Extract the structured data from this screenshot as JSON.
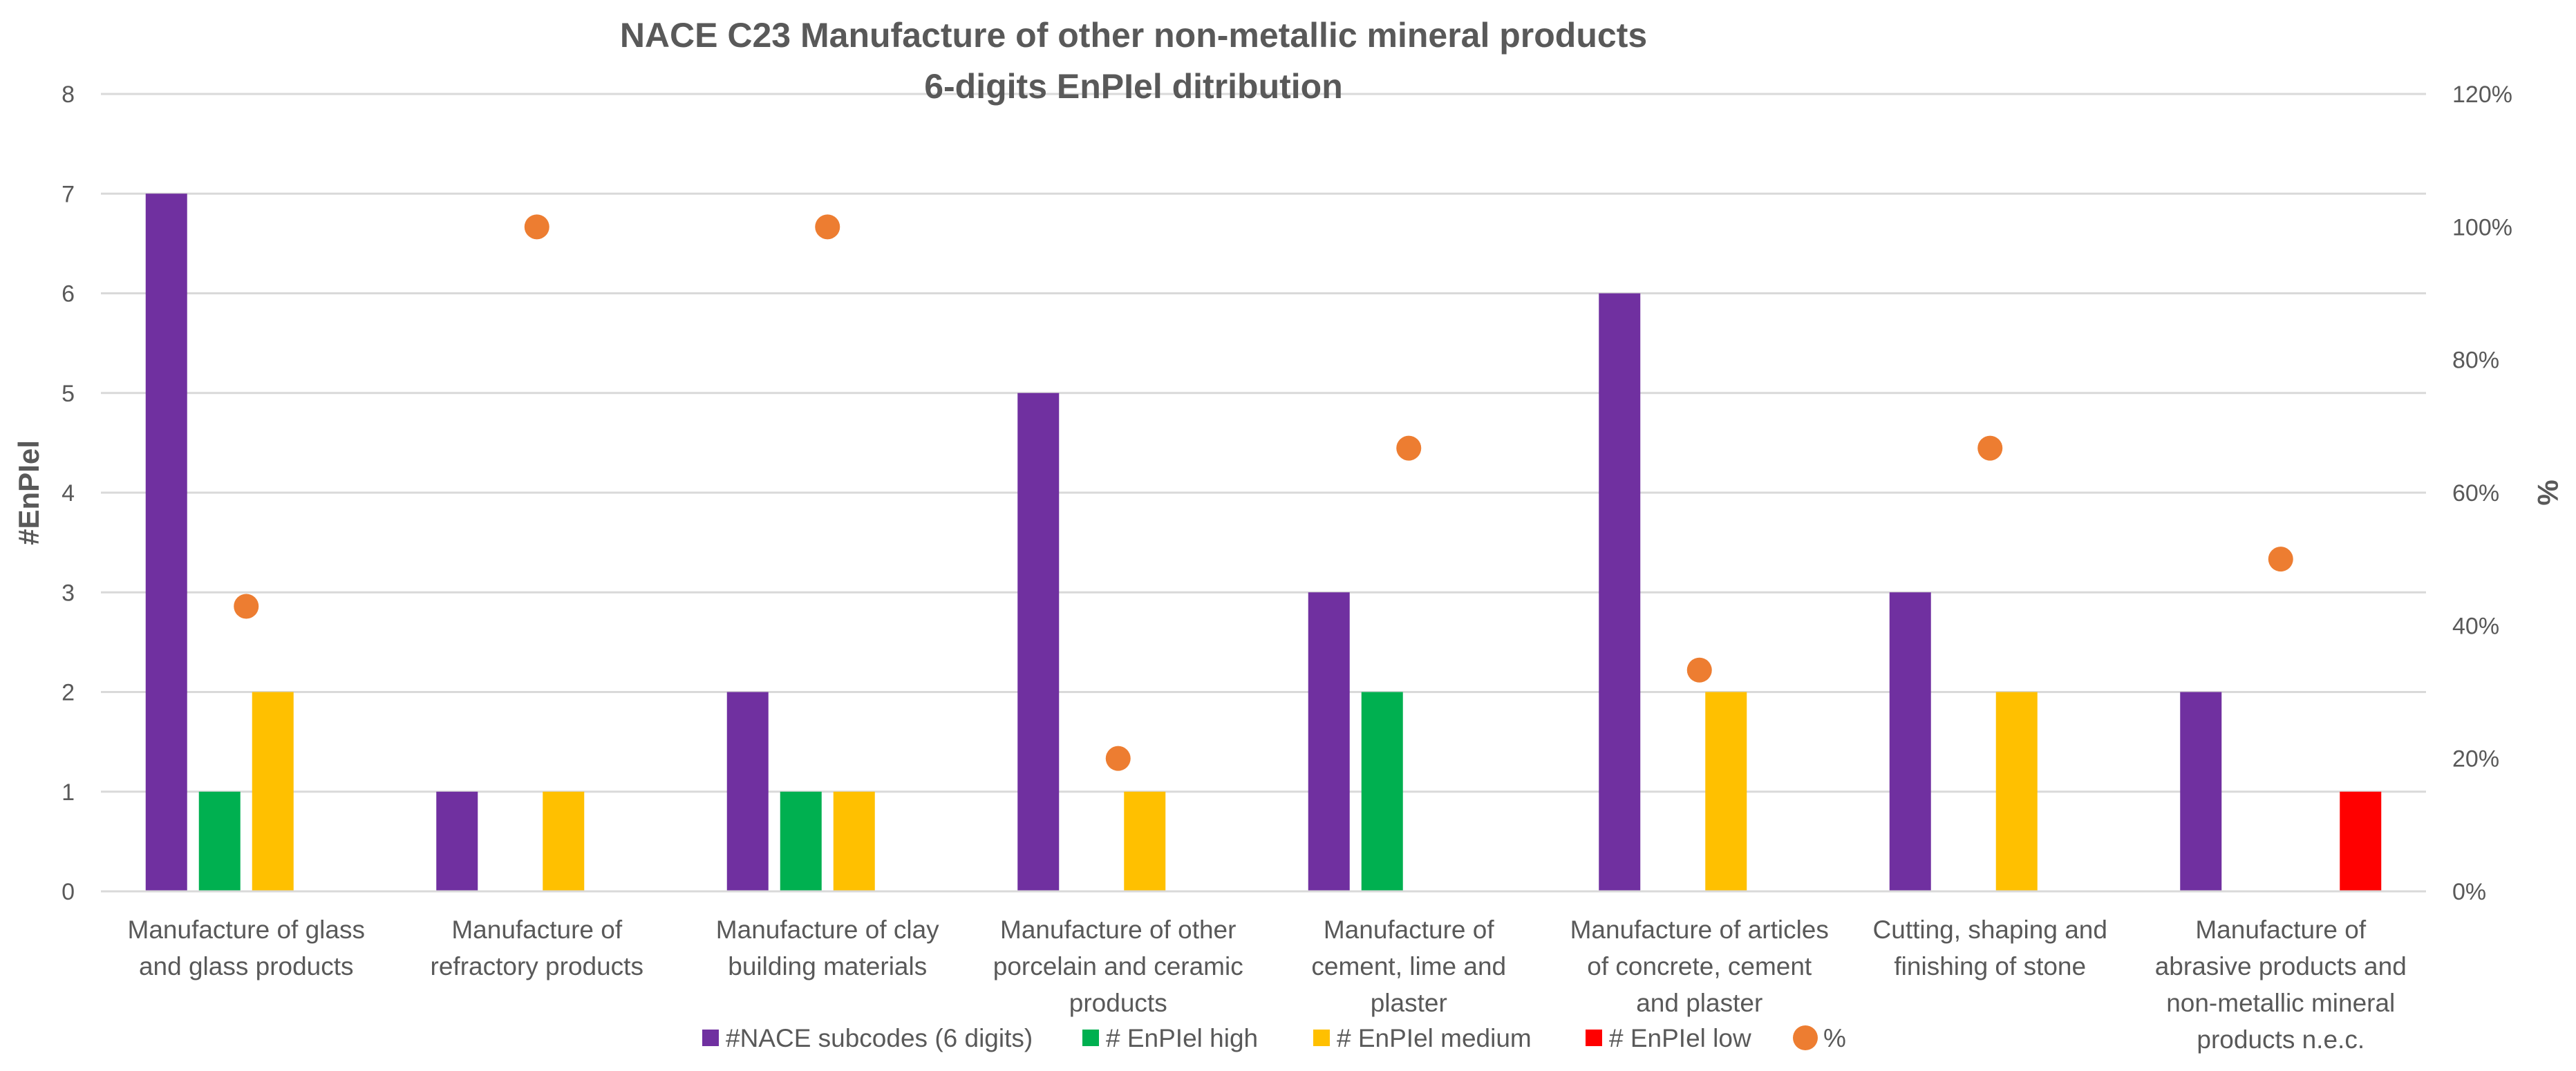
{
  "chart_data": {
    "type": "bar",
    "title": "NACE C23 Manufacture of other non-metallic mineral products",
    "subtitle": "6-digits EnPIel ditribution",
    "ylabel": "#EnPIel",
    "y2label": "%",
    "ylim": [
      0,
      8
    ],
    "y2lim": [
      0,
      120
    ],
    "y_ticks": [
      "0",
      "1",
      "2",
      "3",
      "4",
      "5",
      "6",
      "7",
      "8"
    ],
    "y2_ticks": [
      "0%",
      "20%",
      "40%",
      "60%",
      "80%",
      "100%",
      "120%"
    ],
    "grid": true,
    "legend_position": "bottom",
    "categories": [
      [
        "Manufacture of glass",
        "and glass products"
      ],
      [
        "Manufacture of",
        "refractory products"
      ],
      [
        "Manufacture of clay",
        "building materials"
      ],
      [
        "Manufacture of other",
        "porcelain and ceramic",
        "products"
      ],
      [
        "Manufacture of",
        "cement, lime and",
        "plaster"
      ],
      [
        "Manufacture of articles",
        "of concrete, cement",
        "and plaster"
      ],
      [
        "Cutting, shaping and",
        "finishing of stone"
      ],
      [
        "Manufacture of",
        "abrasive products and",
        "non-metallic mineral",
        "products n.e.c."
      ]
    ],
    "series": [
      {
        "name": "#NACE subcodes (6 digits)",
        "color": "#7030A0",
        "type": "bar",
        "values": [
          7,
          1,
          2,
          5,
          3,
          6,
          3,
          2
        ]
      },
      {
        "name": "# EnPIel  high",
        "color": "#00B050",
        "type": "bar",
        "values": [
          1,
          0,
          1,
          0,
          2,
          0,
          0,
          0
        ]
      },
      {
        "name": "# EnPIel medium",
        "color": "#FFC000",
        "type": "bar",
        "values": [
          2,
          1,
          1,
          1,
          0,
          2,
          2,
          0
        ]
      },
      {
        "name": "# EnPIel low",
        "color": "#FF0000",
        "type": "bar",
        "values": [
          0,
          0,
          0,
          0,
          0,
          0,
          0,
          1
        ]
      },
      {
        "name": "%",
        "color": "#ED7D31",
        "type": "scatter",
        "axis": "secondary",
        "values": [
          42.9,
          100,
          100,
          20,
          66.7,
          33.3,
          66.7,
          50
        ]
      }
    ]
  }
}
